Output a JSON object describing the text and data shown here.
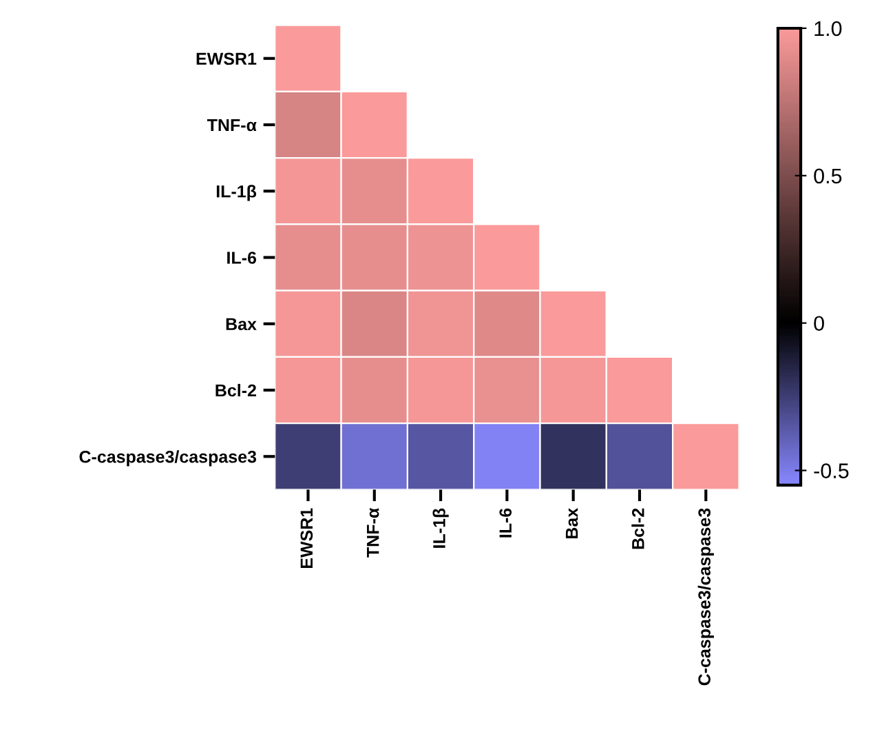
{
  "chart_data": {
    "type": "heatmap",
    "categories": [
      "EWSR1",
      "TNF-α",
      "IL-1β",
      "IL-6",
      "Bax",
      "Bcl-2",
      "C-caspase3/caspase3"
    ],
    "y_categories": [
      "EWSR1",
      "TNF-α",
      "IL-1β",
      "IL-6",
      "Bax",
      "Bcl-2",
      "C-caspase3/caspase3"
    ],
    "cells": [
      [
        1,
        null,
        null,
        null,
        null,
        null,
        null
      ],
      [
        0.85,
        1,
        null,
        null,
        null,
        null,
        null
      ],
      [
        0.97,
        0.92,
        1,
        null,
        null,
        null,
        null
      ],
      [
        0.92,
        0.92,
        0.95,
        1,
        null,
        null,
        null
      ],
      [
        0.98,
        0.87,
        0.96,
        0.89,
        1,
        null,
        null
      ],
      [
        0.98,
        0.92,
        0.98,
        0.93,
        0.98,
        1,
        null
      ],
      [
        -0.25,
        -0.45,
        -0.35,
        -0.52,
        -0.2,
        -0.33,
        1
      ]
    ],
    "colors": [
      "#8888ff",
      "#000000",
      "#fa9a9a"
    ],
    "clim": [
      -0.55,
      1.0
    ],
    "cticks": [
      -0.5,
      0,
      0.5,
      {
        "value": 1.0,
        "label": "1.0"
      }
    ]
  }
}
